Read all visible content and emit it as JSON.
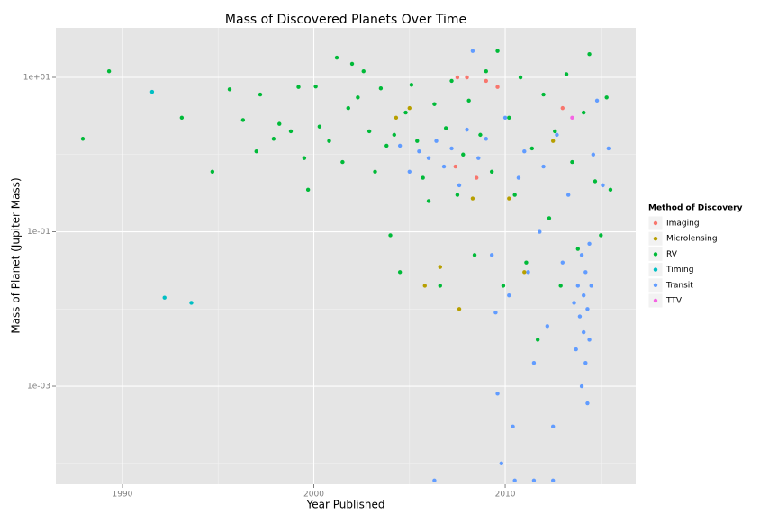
{
  "chart_data": {
    "type": "scatter",
    "title": "Mass of Discovered Planets Over Time",
    "x_label": "Year Published",
    "y_label": "Mass of Planet (Jupiter Mass)",
    "legend_title": "Method of Discovery",
    "legend_position": "right",
    "log_y": true,
    "grid": true,
    "xlim": [
      1986.52,
      2016.82
    ],
    "ylim": [
      5.36e-05,
      43.8
    ],
    "xticks": [
      1990,
      2000,
      2010
    ],
    "yticks": [
      {
        "value": 0.001,
        "label": "1e-03"
      },
      {
        "value": 0.1,
        "label": "1e-01"
      },
      {
        "value": 10,
        "label": "1e+01"
      }
    ],
    "series": [
      {
        "name": "Imaging",
        "color": "#F8766D",
        "x": [
          2007.5,
          2008.0,
          2009.0,
          2009.6,
          2013.0,
          2008.5,
          2007.4
        ],
        "values": [
          10,
          10,
          9,
          7.5,
          4,
          0.5,
          0.7
        ]
      },
      {
        "name": "Microlensing",
        "color": "#B79F00",
        "x": [
          2004.3,
          2005.0,
          2005.8,
          2006.6,
          2007.6,
          2008.3,
          2010.2,
          2011.0,
          2012.5
        ],
        "values": [
          3.0,
          4.0,
          0.02,
          0.035,
          0.01,
          0.27,
          0.27,
          0.03,
          1.5
        ]
      },
      {
        "name": "RV",
        "color": "#00BA38",
        "x": [
          1987.93,
          1989.3,
          1993.1,
          1994.7,
          1995.6,
          1996.3,
          1997.0,
          1997.2,
          1997.9,
          1998.2,
          1998.8,
          1999.2,
          1999.5,
          1999.7,
          2000.1,
          2000.3,
          2000.8,
          2001.2,
          2001.5,
          2001.8,
          2002.0,
          2002.3,
          2002.6,
          2002.9,
          2003.2,
          2003.5,
          2003.8,
          2004.0,
          2004.2,
          2004.5,
          2004.8,
          2005.1,
          2005.4,
          2005.7,
          2006.0,
          2006.3,
          2006.6,
          2006.9,
          2007.2,
          2007.5,
          2007.8,
          2008.1,
          2008.4,
          2008.7,
          2009.0,
          2009.3,
          2009.6,
          2009.9,
          2010.2,
          2010.5,
          2010.8,
          2011.1,
          2011.4,
          2011.7,
          2012.0,
          2012.3,
          2012.6,
          2012.9,
          2013.2,
          2013.5,
          2013.8,
          2014.1,
          2014.4,
          2014.7,
          2015.0,
          2015.3,
          2015.5
        ],
        "values": [
          1.6,
          12,
          3.0,
          0.6,
          7.0,
          2.8,
          1.1,
          6.0,
          1.6,
          2.5,
          2.0,
          7.5,
          0.9,
          0.35,
          7.6,
          2.3,
          1.5,
          18,
          0.8,
          4.0,
          15,
          5.5,
          12,
          2.0,
          0.6,
          7.2,
          1.3,
          0.09,
          1.8,
          0.03,
          3.5,
          8.0,
          1.5,
          0.5,
          0.25,
          4.5,
          0.02,
          2.2,
          9.0,
          0.3,
          1.0,
          5.0,
          0.05,
          1.8,
          12,
          0.6,
          22,
          0.02,
          3.0,
          0.3,
          10,
          0.04,
          1.2,
          0.004,
          6.0,
          0.15,
          2.0,
          0.02,
          11,
          0.8,
          0.06,
          3.5,
          20,
          0.45,
          0.09,
          5.5,
          0.35
        ]
      },
      {
        "name": "Timing",
        "color": "#00BFC4",
        "x": [
          1991.55,
          1992.2,
          1993.6
        ],
        "values": [
          6.5,
          0.014,
          0.012
        ]
      },
      {
        "name": "Transit",
        "color": "#619CFF",
        "x": [
          2004.5,
          2005.0,
          2005.5,
          2006.0,
          2006.4,
          2006.8,
          2007.2,
          2007.6,
          2008.0,
          2008.3,
          2008.6,
          2009.0,
          2009.3,
          2009.5,
          2009.6,
          2009.8,
          2010.0,
          2010.2,
          2010.4,
          2010.7,
          2011.0,
          2011.2,
          2011.5,
          2011.8,
          2012.0,
          2012.2,
          2012.5,
          2012.7,
          2013.0,
          2013.3,
          2013.6,
          2013.7,
          2013.8,
          2013.9,
          2014.0,
          2014.0,
          2014.1,
          2014.1,
          2014.2,
          2014.2,
          2014.3,
          2014.3,
          2014.4,
          2014.4,
          2014.5,
          2014.6,
          2014.8,
          2015.1,
          2015.4,
          2010.5,
          2011.5,
          2012.5,
          2006.3
        ],
        "values": [
          1.3,
          0.6,
          1.1,
          0.9,
          1.5,
          0.7,
          1.2,
          0.4,
          2.1,
          22,
          0.9,
          1.6,
          0.05,
          0.009,
          0.0008,
          0.0001,
          3.0,
          0.015,
          0.0003,
          0.5,
          1.1,
          0.03,
          0.002,
          0.1,
          0.7,
          0.006,
          0.0003,
          1.8,
          0.04,
          0.3,
          0.012,
          0.003,
          0.02,
          0.008,
          0.001,
          0.05,
          0.015,
          0.005,
          0.002,
          0.03,
          0.01,
          0.0006,
          0.004,
          0.07,
          0.02,
          1.0,
          5.0,
          0.4,
          1.2,
          6e-05,
          6e-05,
          6e-05,
          6e-05
        ]
      },
      {
        "name": "TTV",
        "color": "#F564E3",
        "x": [
          2013.5
        ],
        "values": [
          3.0
        ]
      }
    ]
  }
}
